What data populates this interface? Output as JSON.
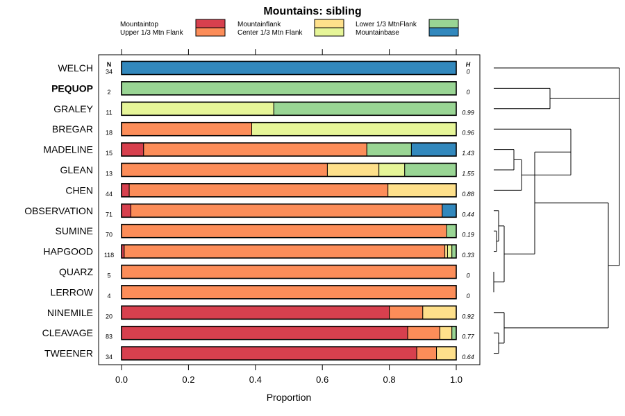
{
  "chart_data": {
    "type": "bar",
    "orientation": "horizontal",
    "stacked": true,
    "title": "Mountains: sibling",
    "xlabel": "Proportion",
    "ylabel": "",
    "xlim": [
      0,
      1
    ],
    "x_ticks": [
      "0.0",
      "0.2",
      "0.4",
      "0.6",
      "0.8",
      "1.0"
    ],
    "n_header": "N",
    "h_header": "H",
    "grid": false,
    "legend_position": "top",
    "legend": [
      {
        "name": "Mountaintop",
        "color": "#d7404e"
      },
      {
        "name": "Upper 1/3 Mtn Flank",
        "color": "#fc8d59"
      },
      {
        "name": "Mountainflank",
        "color": "#fee08b"
      },
      {
        "name": "Center 1/3 Mtn Flank",
        "color": "#e6f598"
      },
      {
        "name": "Lower 1/3 MtnFlank",
        "color": "#99d594"
      },
      {
        "name": "Mountainbase",
        "color": "#3288bd"
      }
    ],
    "highlighted_category": "PEQUOP",
    "categories": [
      "WELCH",
      "PEQUOP",
      "GRALEY",
      "BREGAR",
      "MADELINE",
      "GLEAN",
      "CHEN",
      "OBSERVATION",
      "SUMINE",
      "HAPGOOD",
      "QUARZ",
      "LERROW",
      "NINEMILE",
      "CLEAVAGE",
      "TWEENER"
    ],
    "n": [
      "34",
      "2",
      "11",
      "18",
      "15",
      "13",
      "44",
      "71",
      "70",
      "118",
      "5",
      "4",
      "20",
      "83",
      "34"
    ],
    "h": [
      "0",
      "0",
      "0.99",
      "0.96",
      "1.43",
      "1.55",
      "0.88",
      "0.44",
      "0.19",
      "0.33",
      "0",
      "0",
      "0.92",
      "0.77",
      "0.64"
    ],
    "series": [
      {
        "name": "Mountaintop",
        "values": [
          0,
          0,
          0,
          0,
          0.066,
          0,
          0.023,
          0.028,
          0,
          0.008,
          0,
          0,
          0.8,
          0.855,
          0.882
        ]
      },
      {
        "name": "Upper 1/3 Mtn Flank",
        "values": [
          0,
          0,
          0,
          0.389,
          0.667,
          0.615,
          0.773,
          0.93,
          0.971,
          0.958,
          1,
          1,
          0.1,
          0.096,
          0.059
        ]
      },
      {
        "name": "Mountainflank",
        "values": [
          0,
          0,
          0,
          0,
          0,
          0.154,
          0.204,
          0,
          0,
          0.008,
          0,
          0,
          0.1,
          0.036,
          0.059
        ]
      },
      {
        "name": "Center 1/3 Mtn Flank",
        "values": [
          0,
          0,
          0.455,
          0.611,
          0,
          0.077,
          0,
          0,
          0,
          0.013,
          0,
          0,
          0,
          0,
          0
        ]
      },
      {
        "name": "Lower 1/3 MtnFlank",
        "values": [
          0,
          1,
          0.545,
          0,
          0.133,
          0.154,
          0,
          0,
          0.029,
          0.013,
          0,
          0,
          0,
          0.013,
          0
        ]
      },
      {
        "name": "Mountainbase",
        "values": [
          1,
          0,
          0,
          0,
          0.134,
          0,
          0,
          0.042,
          0,
          0,
          0,
          0,
          0,
          0,
          0
        ]
      }
    ],
    "dendrogram": {
      "type": "hierarchical-clustering",
      "leaf_order": [
        "WELCH",
        "PEQUOP",
        "GRALEY",
        "BREGAR",
        "MADELINE",
        "GLEAN",
        "CHEN",
        "OBSERVATION",
        "SUMINE",
        "HAPGOOD",
        "QUARZ",
        "LERROW",
        "NINEMILE",
        "CLEAVAGE",
        "TWEENER"
      ],
      "merges": [
        {
          "a": "CHEN",
          "b": "MADELINE+GLEAN",
          "height": 0.18
        },
        {
          "a": "BREGAR",
          "b": "MADELINE+GLEAN+CHEN",
          "height": 0.43
        },
        {
          "a": "GRALEY",
          "b": "PEQUOP",
          "height": 0.57
        },
        {
          "a": "WELCH",
          "b": "GRALEY+PEQUOP",
          "height": 1.0
        },
        {
          "a": "CLUSTER-A",
          "b": "CLUSTER-B",
          "height": 1.0
        },
        {
          "a": "MADELINE",
          "b": "GLEAN",
          "height": 0.13
        },
        {
          "a": "SUMINE",
          "b": "HAPGOOD",
          "height": 0.02
        },
        {
          "a": "OBSERVATION",
          "b": "SUMINE+HAPGOOD",
          "height": 0.05
        },
        {
          "a": "QUARZ",
          "b": "LERROW",
          "height": 0.0
        },
        {
          "a": "OBS-GROUP",
          "b": "QUARZ+LERROW",
          "height": 0.09
        },
        {
          "a": "CLEAVAGE",
          "b": "TWEENER",
          "height": 0.05
        },
        {
          "a": "NINEMILE",
          "b": "CLEAVAGE+TWEENER",
          "height": 0.09
        },
        {
          "a": "UPPER-GROUP",
          "b": "BASE-GROUP",
          "height": 0.37
        }
      ]
    }
  }
}
